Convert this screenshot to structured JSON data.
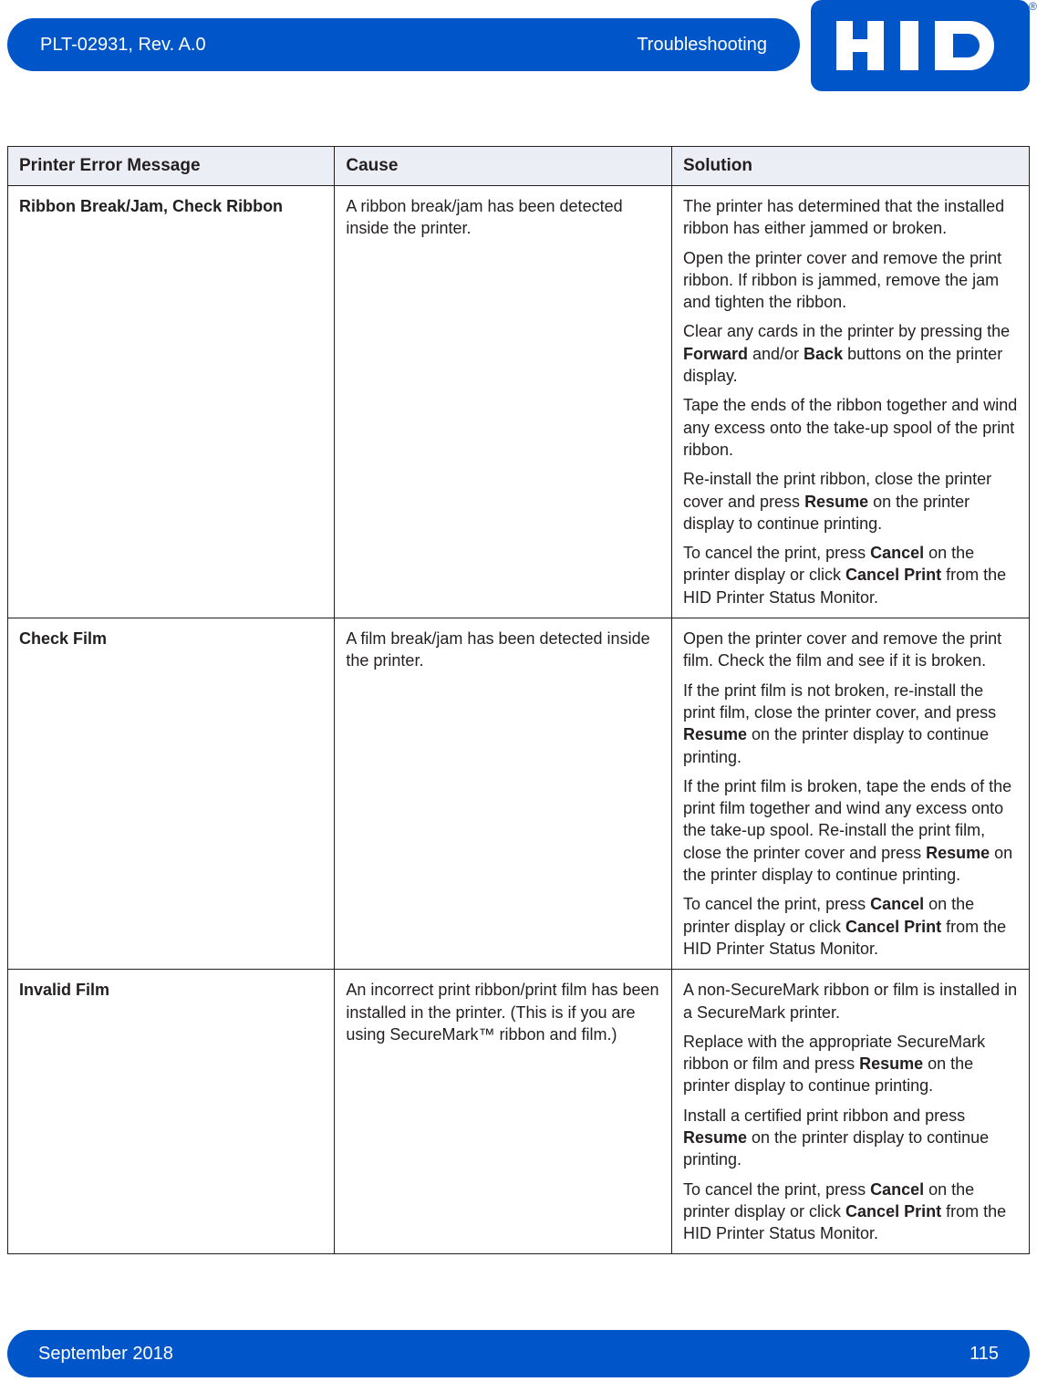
{
  "header": {
    "doc_id": "PLT-02931, Rev. A.0",
    "section": "Troubleshooting",
    "logo_text": "HID",
    "reg_mark": "®"
  },
  "colors": {
    "brand": "#0055c8",
    "header_row_bg": "#eceef6",
    "border": "#231f20",
    "text": "#231f20",
    "page_bg": "#ffffff"
  },
  "table": {
    "columns": [
      "Printer Error Message",
      "Cause",
      "Solution"
    ],
    "col_widths_pct": [
      32,
      33,
      35
    ],
    "rows": [
      {
        "error": "Ribbon Break/Jam, Check Ribbon",
        "cause": [
          "A ribbon break/jam has been detected inside the printer."
        ],
        "solution": [
          [
            {
              "t": "The printer has determined that the installed ribbon has either jammed or broken."
            }
          ],
          [
            {
              "t": "Open the printer cover and remove the print ribbon. If ribbon is jammed, remove the jam and tighten the ribbon."
            }
          ],
          [
            {
              "t": "Clear any cards in the printer by pressing the "
            },
            {
              "t": "Forward",
              "b": true
            },
            {
              "t": " and/or "
            },
            {
              "t": "Back",
              "b": true
            },
            {
              "t": " buttons on the printer display."
            }
          ],
          [
            {
              "t": "Tape the ends of the ribbon together and wind any excess onto the take-up spool of the print ribbon."
            }
          ],
          [
            {
              "t": "Re-install the print ribbon, close the printer cover and press "
            },
            {
              "t": "Resume",
              "b": true
            },
            {
              "t": " on the printer display to continue printing."
            }
          ],
          [
            {
              "t": "To cancel the print, press "
            },
            {
              "t": "Cancel",
              "b": true
            },
            {
              "t": " on the printer display or click "
            },
            {
              "t": "Cancel Print",
              "b": true
            },
            {
              "t": " from the HID Printer Status Monitor."
            }
          ]
        ]
      },
      {
        "error": "Check Film",
        "cause": [
          "A film break/jam has been detected inside the printer."
        ],
        "solution": [
          [
            {
              "t": "Open the printer cover and remove the print film. Check the film and see if it is broken."
            }
          ],
          [
            {
              "t": "If the print film is not broken, re-install the print film, close the printer cover, and press "
            },
            {
              "t": "Resume",
              "b": true
            },
            {
              "t": " on the printer display to continue printing."
            }
          ],
          [
            {
              "t": "If the print film is broken, tape the ends of the print film together and wind any excess onto the take-up spool. Re-install the print film, close the printer cover and press "
            },
            {
              "t": "Resume",
              "b": true
            },
            {
              "t": " on the printer display to continue printing."
            }
          ],
          [
            {
              "t": "To cancel the print, press "
            },
            {
              "t": "Cancel",
              "b": true
            },
            {
              "t": " on the printer display or click "
            },
            {
              "t": "Cancel Print",
              "b": true
            },
            {
              "t": " from the HID Printer Status Monitor."
            }
          ]
        ]
      },
      {
        "error": "Invalid Film",
        "cause": [
          "An incorrect print ribbon/print film has been installed in the printer. (This is if you are using SecureMark™ ribbon and film.)"
        ],
        "solution": [
          [
            {
              "t": "A non-SecureMark ribbon or film is installed in a SecureMark printer."
            }
          ],
          [
            {
              "t": "Replace with the appropriate SecureMark ribbon or film and press "
            },
            {
              "t": "Resume",
              "b": true
            },
            {
              "t": " on the printer display to continue printing."
            }
          ],
          [
            {
              "t": "Install a certified print ribbon and press "
            },
            {
              "t": "Resume",
              "b": true
            },
            {
              "t": " on the printer display to continue printing."
            }
          ],
          [
            {
              "t": "To cancel the print, press "
            },
            {
              "t": "Cancel",
              "b": true
            },
            {
              "t": " on the printer display or click "
            },
            {
              "t": "Cancel Print",
              "b": true
            },
            {
              "t": " from the HID Printer Status Monitor."
            }
          ]
        ]
      }
    ]
  },
  "footer": {
    "date": "September 2018",
    "page": "115"
  }
}
